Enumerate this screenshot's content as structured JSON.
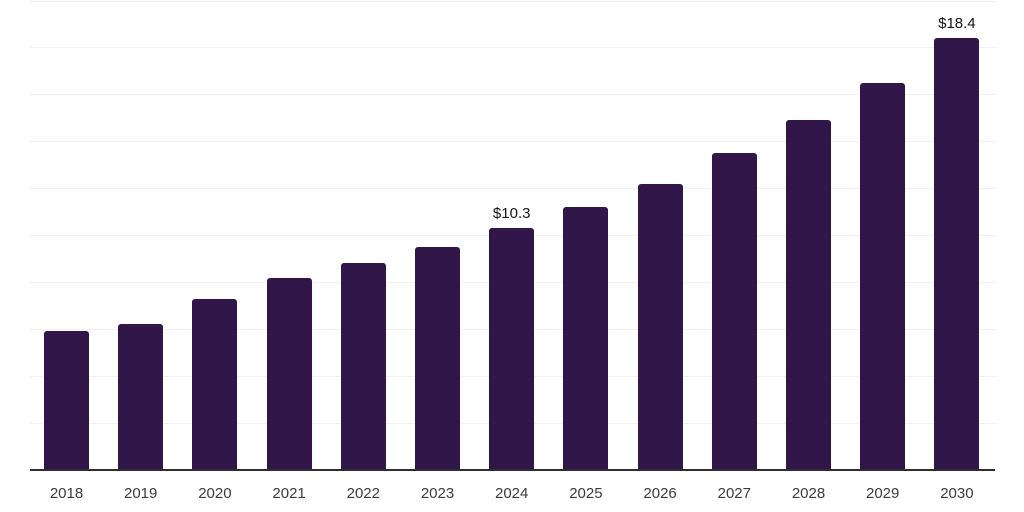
{
  "chart_data": {
    "type": "bar",
    "title": "",
    "xlabel": "",
    "ylabel": "",
    "categories": [
      "2018",
      "2019",
      "2020",
      "2021",
      "2022",
      "2023",
      "2024",
      "2025",
      "2026",
      "2027",
      "2028",
      "2029",
      "2030"
    ],
    "values": [
      5.9,
      6.2,
      7.3,
      8.2,
      8.8,
      9.5,
      10.3,
      11.2,
      12.2,
      13.5,
      14.9,
      16.5,
      18.4
    ],
    "annotations": [
      {
        "category": "2024",
        "text": "$10.3"
      },
      {
        "category": "2030",
        "text": "$18.4"
      }
    ],
    "ylim": [
      0,
      20
    ],
    "gridline_step": 2,
    "grid": "horizontal, light gray, no y tick labels",
    "legend": "none",
    "colors": {
      "bar": "#31164a",
      "gridline": "#f2f2f2",
      "axis_line": "#2e2e2e",
      "tick_label": "#3b3b3b",
      "data_label": "#141414",
      "background": "#ffffff"
    }
  }
}
